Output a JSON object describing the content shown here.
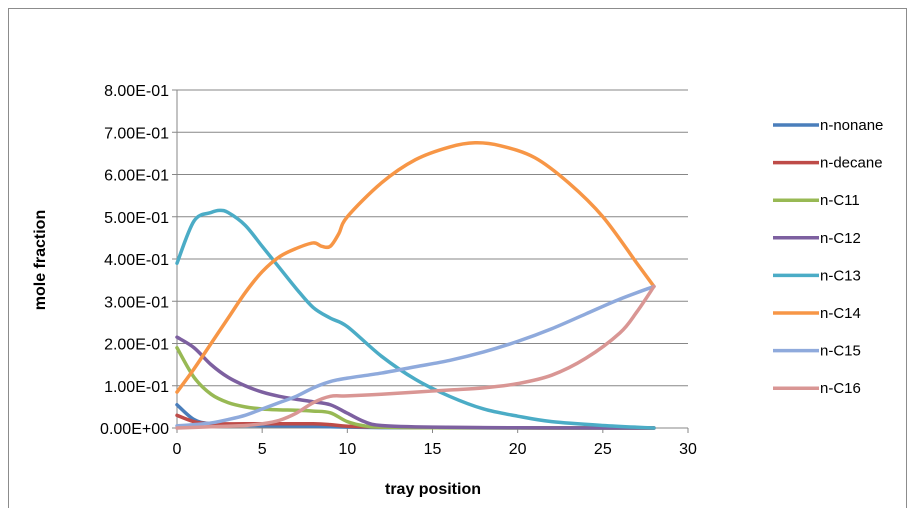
{
  "chart_data": {
    "type": "line",
    "title": "",
    "xlabel": "tray position",
    "ylabel": "mole fraction",
    "xlim": [
      0,
      30
    ],
    "ylim": [
      0,
      0.8
    ],
    "x_ticks": [
      "0",
      "5",
      "10",
      "15",
      "20",
      "25",
      "30"
    ],
    "y_ticks": [
      "0.00E+00",
      "1.00E-01",
      "2.00E-01",
      "3.00E-01",
      "4.00E-01",
      "5.00E-01",
      "6.00E-01",
      "7.00E-01",
      "8.00E-01"
    ],
    "grid": "horizontal",
    "legend": "right",
    "series": [
      {
        "name": "n-nonane",
        "color": "#4a7ebb",
        "x": [
          0,
          1,
          2,
          4,
          6,
          8,
          9,
          10,
          12,
          15,
          20,
          25,
          28
        ],
        "y": [
          0.055,
          0.02,
          0.01,
          0.006,
          0.005,
          0.004,
          0.003,
          0.002,
          0.001,
          0.0005,
          0.0002,
          0.0001,
          0.0
        ]
      },
      {
        "name": "n-decane",
        "color": "#be4b48",
        "x": [
          0,
          1,
          2,
          4,
          6,
          8,
          9,
          10,
          12,
          15,
          20,
          25,
          28
        ],
        "y": [
          0.03,
          0.015,
          0.01,
          0.01,
          0.01,
          0.01,
          0.008,
          0.004,
          0.002,
          0.001,
          0.0005,
          0.0002,
          0.0
        ]
      },
      {
        "name": "n-C11",
        "color": "#98b954",
        "x": [
          0,
          1,
          2,
          3,
          4,
          5,
          6,
          7,
          8,
          9,
          10,
          11,
          12,
          15,
          20,
          25,
          28
        ],
        "y": [
          0.19,
          0.12,
          0.08,
          0.06,
          0.05,
          0.045,
          0.043,
          0.042,
          0.04,
          0.036,
          0.015,
          0.005,
          0.002,
          0.0005,
          0.0001,
          0.0,
          0.0
        ]
      },
      {
        "name": "n-C12",
        "color": "#7d60a0",
        "x": [
          0,
          1,
          2,
          3,
          4,
          5,
          6,
          7,
          8,
          9,
          10,
          11,
          12,
          15,
          20,
          25,
          28
        ],
        "y": [
          0.215,
          0.19,
          0.15,
          0.12,
          0.1,
          0.085,
          0.075,
          0.068,
          0.062,
          0.055,
          0.035,
          0.015,
          0.006,
          0.002,
          0.0005,
          0.0001,
          0.0
        ]
      },
      {
        "name": "n-C13",
        "color": "#4bacc6",
        "x": [
          0,
          1,
          2,
          2.5,
          3,
          4,
          5,
          6,
          7,
          8,
          9,
          10,
          12,
          14,
          16,
          18,
          20,
          22,
          25,
          28
        ],
        "y": [
          0.39,
          0.49,
          0.51,
          0.515,
          0.51,
          0.48,
          0.43,
          0.38,
          0.33,
          0.285,
          0.26,
          0.24,
          0.17,
          0.115,
          0.075,
          0.045,
          0.028,
          0.015,
          0.006,
          0.0
        ]
      },
      {
        "name": "n-C14",
        "color": "#f79646",
        "x": [
          0,
          1,
          2,
          3,
          4,
          5,
          6,
          7,
          8,
          8.5,
          9,
          9.5,
          10,
          12,
          14,
          16,
          17.5,
          19,
          21,
          23,
          25,
          27,
          28
        ],
        "y": [
          0.085,
          0.14,
          0.2,
          0.26,
          0.32,
          0.37,
          0.405,
          0.425,
          0.438,
          0.43,
          0.43,
          0.46,
          0.5,
          0.58,
          0.635,
          0.665,
          0.675,
          0.668,
          0.64,
          0.58,
          0.5,
          0.39,
          0.335
        ]
      },
      {
        "name": "n-C15",
        "color": "#8faadc",
        "x": [
          0,
          1,
          2,
          3,
          4,
          5,
          6,
          7,
          8,
          9,
          10,
          12,
          14,
          16,
          18,
          20,
          22,
          24,
          26,
          28
        ],
        "y": [
          0.005,
          0.008,
          0.012,
          0.02,
          0.03,
          0.045,
          0.06,
          0.075,
          0.095,
          0.11,
          0.118,
          0.13,
          0.145,
          0.16,
          0.18,
          0.205,
          0.235,
          0.27,
          0.305,
          0.335
        ]
      },
      {
        "name": "n-C16",
        "color": "#d99694",
        "x": [
          0,
          2,
          4,
          5,
          6,
          7,
          8,
          9,
          10,
          12,
          14,
          16,
          18,
          20,
          22,
          24,
          26,
          27,
          28
        ],
        "y": [
          0.0,
          0.003,
          0.006,
          0.01,
          0.018,
          0.035,
          0.06,
          0.075,
          0.076,
          0.08,
          0.085,
          0.09,
          0.095,
          0.105,
          0.125,
          0.165,
          0.225,
          0.275,
          0.335
        ]
      }
    ]
  }
}
